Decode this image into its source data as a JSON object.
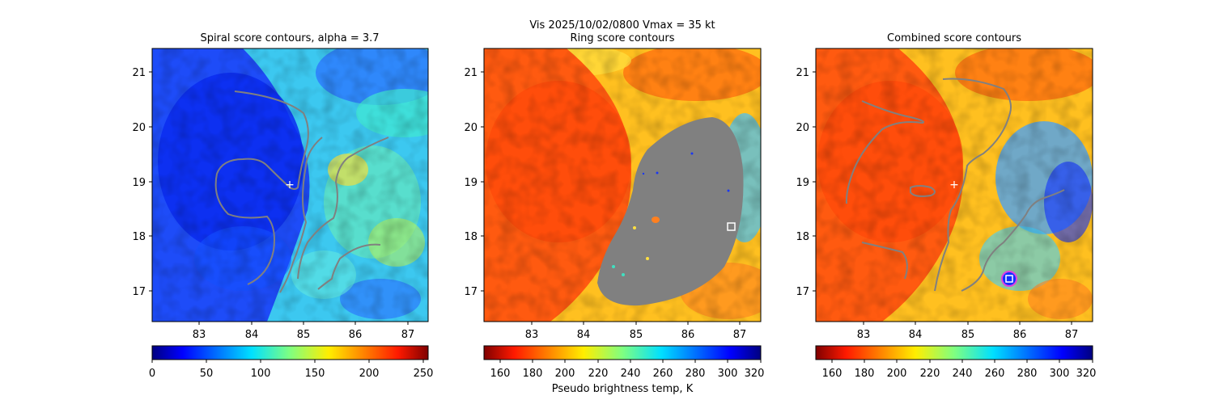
{
  "suptitle": "Vis  2025/10/02/0800    Vmax = 35 kt",
  "colorbar_label": "Pseudo brightness temp, K",
  "chart_data": [
    {
      "type": "heatmap",
      "title": "Spiral score contours, alpha =  3.7",
      "xlim": [
        82.1,
        87.4
      ],
      "ylim": [
        16.45,
        21.45
      ],
      "x_ticks": [
        "83",
        "84",
        "85",
        "86",
        "87"
      ],
      "y_ticks": [
        "17",
        "18",
        "19",
        "20",
        "21"
      ],
      "colormap": "jet",
      "colorbar_range": [
        0,
        255
      ],
      "colorbar_ticks": [
        "0",
        "50",
        "100",
        "150",
        "200",
        "250"
      ],
      "center_marker": {
        "x": 84.75,
        "y": 18.93,
        "symbol": "+",
        "color": "#ffffff"
      },
      "contour_color": "#808080"
    },
    {
      "type": "heatmap",
      "title": "Ring score contours",
      "xlim": [
        82.1,
        87.4
      ],
      "ylim": [
        16.45,
        21.45
      ],
      "x_ticks": [
        "83",
        "84",
        "85",
        "86",
        "87"
      ],
      "y_ticks": [
        "17",
        "18",
        "19",
        "20",
        "21"
      ],
      "colormap": "jet_r",
      "colorbar_range": [
        150,
        320
      ],
      "colorbar_ticks": [
        "160",
        "180",
        "200",
        "220",
        "240",
        "260",
        "280",
        "300",
        "320"
      ],
      "center_marker": {
        "x": 86.83,
        "y": 18.17,
        "symbol": "square",
        "color": "#ffffff"
      },
      "contour_color": "#808080"
    },
    {
      "type": "heatmap",
      "title": "Combined score contours",
      "xlim": [
        82.1,
        87.4
      ],
      "ylim": [
        16.45,
        21.45
      ],
      "x_ticks": [
        "83",
        "84",
        "85",
        "86",
        "87"
      ],
      "y_ticks": [
        "17",
        "18",
        "19",
        "20",
        "21"
      ],
      "colormap": "jet_r",
      "colorbar_range": [
        150,
        320
      ],
      "colorbar_ticks": [
        "160",
        "180",
        "200",
        "220",
        "240",
        "260",
        "280",
        "300",
        "320"
      ],
      "center_marker": {
        "x": 84.75,
        "y": 18.93,
        "symbol": "+",
        "color": "#ffffff"
      },
      "best_marker": {
        "x": 85.77,
        "y": 17.22,
        "symbol": "square",
        "ring_color": "#e040e0",
        "color": "#ffffff"
      },
      "contour_color": "#808080"
    }
  ]
}
